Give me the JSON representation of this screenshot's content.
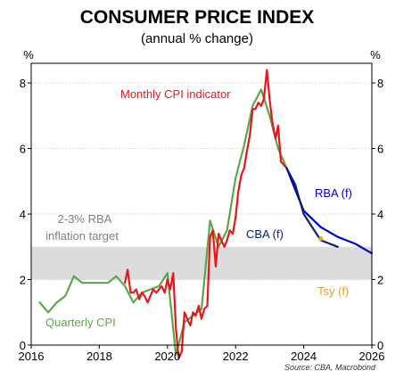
{
  "chart_data": {
    "type": "line",
    "title": "CONSUMER PRICE INDEX",
    "subtitle": "(annual % change)",
    "y_unit_left": "%",
    "y_unit_right": "%",
    "source": "Source: CBA, Macrobond",
    "xlim": [
      2016,
      2026
    ],
    "ylim": [
      0,
      8.6
    ],
    "x_ticks": [
      "2016",
      "2018",
      "2020",
      "2022",
      "2024",
      "2026"
    ],
    "y_ticks": [
      "0",
      "2",
      "4",
      "6",
      "8"
    ],
    "grid": true,
    "target_band": {
      "label": "2-3% RBA\ninflation target",
      "ymin": 2,
      "ymax": 3,
      "color": "#dcdcdc"
    },
    "series": [
      {
        "name": "Monthly CPI indicator",
        "color": "#e8161a",
        "x": [
          2018.75,
          2018.83,
          2018.92,
          2019.0,
          2019.08,
          2019.17,
          2019.25,
          2019.33,
          2019.42,
          2019.5,
          2019.58,
          2019.67,
          2019.75,
          2019.83,
          2019.92,
          2020.0,
          2020.08,
          2020.17,
          2020.25,
          2020.33,
          2020.42,
          2020.5,
          2020.58,
          2020.67,
          2020.75,
          2020.83,
          2020.92,
          2021.0,
          2021.08,
          2021.17,
          2021.25,
          2021.33,
          2021.42,
          2021.5,
          2021.58,
          2021.67,
          2021.75,
          2021.83,
          2021.92,
          2022.0,
          2022.08,
          2022.17,
          2022.25,
          2022.33,
          2022.42,
          2022.5,
          2022.58,
          2022.67,
          2022.75,
          2022.83,
          2022.92,
          2023.0,
          2023.08,
          2023.17,
          2023.25,
          2023.33,
          2023.42,
          2023.5
        ],
        "y": [
          1.9,
          2.3,
          1.6,
          1.6,
          1.7,
          1.4,
          1.6,
          1.5,
          1.3,
          1.5,
          1.7,
          1.6,
          1.7,
          1.8,
          1.6,
          2.0,
          1.7,
          2.2,
          0.5,
          -0.4,
          -0.2,
          1.0,
          0.8,
          0.6,
          1.0,
          0.9,
          1.2,
          0.8,
          1.1,
          1.2,
          3.3,
          3.5,
          2.4,
          3.4,
          3.2,
          3.0,
          3.2,
          3.5,
          3.4,
          3.9,
          4.7,
          5.2,
          5.4,
          5.9,
          6.4,
          7.2,
          7.2,
          7.4,
          7.3,
          7.5,
          8.4,
          7.5,
          6.8,
          6.3,
          6.7,
          5.6,
          5.5,
          5.4
        ]
      },
      {
        "name": "Quarterly CPI",
        "color": "#5aa84a",
        "x": [
          2016.25,
          2016.5,
          2016.75,
          2017.0,
          2017.25,
          2017.5,
          2017.75,
          2018.0,
          2018.25,
          2018.5,
          2018.75,
          2019.0,
          2019.25,
          2019.5,
          2019.75,
          2020.0,
          2020.25,
          2020.5,
          2020.75,
          2021.0,
          2021.25,
          2021.5,
          2021.75,
          2022.0,
          2022.25,
          2022.5,
          2022.75,
          2023.0,
          2023.25,
          2023.5
        ],
        "y": [
          1.3,
          1.0,
          1.3,
          1.5,
          2.1,
          1.9,
          1.9,
          1.9,
          1.9,
          2.1,
          1.8,
          1.3,
          1.6,
          1.7,
          1.8,
          2.2,
          -0.3,
          0.7,
          0.9,
          1.1,
          3.8,
          3.0,
          3.5,
          5.1,
          6.1,
          7.3,
          7.8,
          7.0,
          6.0,
          5.4
        ]
      },
      {
        "name": "RBA (f)",
        "color": "#0000c8",
        "x": [
          2023.5,
          2024.0,
          2024.5,
          2025.0,
          2025.5,
          2026.0
        ],
        "y": [
          5.4,
          4.1,
          3.6,
          3.3,
          3.1,
          2.8
        ]
      },
      {
        "name": "CBA (f)",
        "color": "#0a1f6e",
        "x": [
          2023.5,
          2023.75,
          2024.0,
          2024.25,
          2024.5,
          2024.75,
          2025.0
        ],
        "y": [
          5.4,
          4.9,
          4.0,
          3.6,
          3.2,
          3.1,
          3.0
        ]
      },
      {
        "name": "Tsy (f)",
        "color": "#e8a020",
        "type": "point",
        "x": [
          2024.5
        ],
        "y": [
          3.25
        ]
      }
    ]
  },
  "labels": {
    "monthly": "Monthly CPI indicator",
    "quarterly": "Quarterly CPI",
    "rba": "RBA (f)",
    "cba": "CBA (f)",
    "tsy": "Tsy (f)",
    "target_line1": "2-3% RBA",
    "target_line2": "inflation target"
  }
}
